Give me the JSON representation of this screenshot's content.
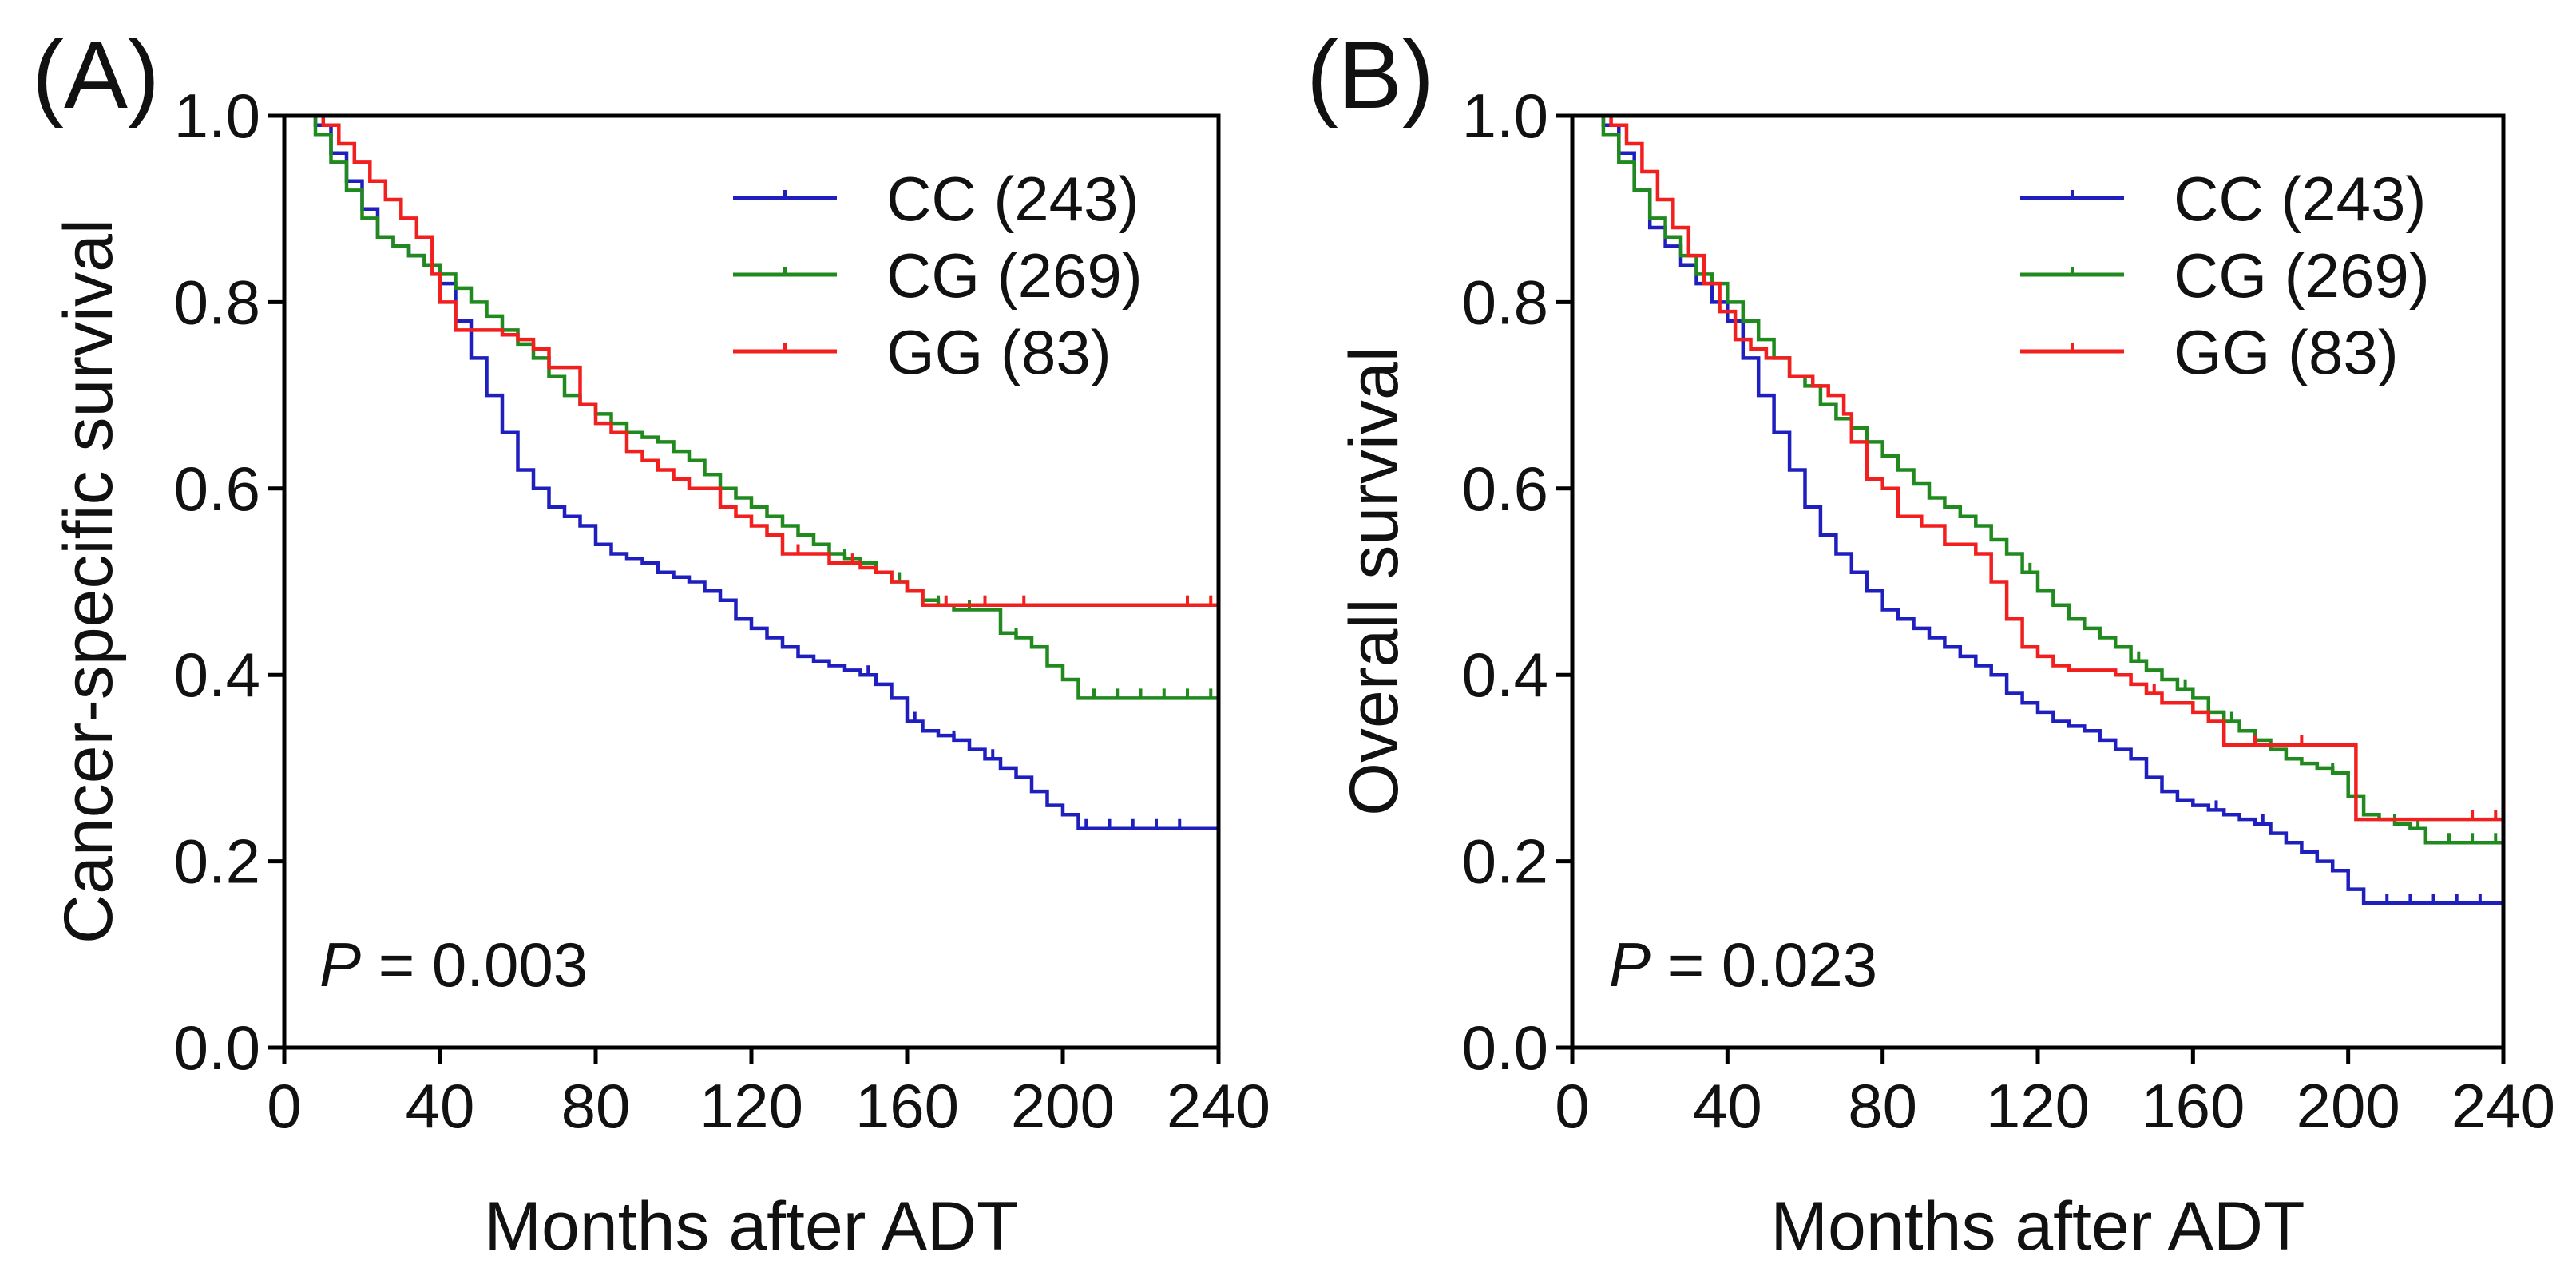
{
  "colors": {
    "CC": "#1f1fbf",
    "CG": "#218a1f",
    "GG": "#f21f1f",
    "axis": "#000000"
  },
  "chart_data": [
    {
      "type": "line",
      "panel_label": "(A)",
      "ylabel": "Cancer-specific survival",
      "xlabel": "Months after ADT",
      "xlim": [
        0,
        240
      ],
      "ylim": [
        0,
        1
      ],
      "xticks": [
        "0",
        "40",
        "80",
        "120",
        "160",
        "200",
        "240"
      ],
      "yticks": [
        "0.0",
        "0.2",
        "0.4",
        "0.6",
        "0.8",
        "1.0"
      ],
      "p_prefix": "P",
      "p_suffix": " = 0.003",
      "legend_position": "top-right",
      "series": [
        {
          "key": "CC",
          "name": "CC (243)",
          "x": [
            0,
            8,
            12,
            16,
            20,
            24,
            28,
            32,
            36,
            40,
            44,
            48,
            52,
            56,
            60,
            64,
            68,
            72,
            76,
            80,
            84,
            88,
            92,
            96,
            100,
            104,
            108,
            112,
            116,
            120,
            124,
            128,
            132,
            136,
            140,
            144,
            148,
            152,
            156,
            160,
            164,
            168,
            172,
            176,
            180,
            184,
            188,
            192,
            196,
            200,
            204,
            208,
            240
          ],
          "y": [
            1.0,
            0.99,
            0.96,
            0.93,
            0.9,
            0.87,
            0.86,
            0.85,
            0.84,
            0.82,
            0.78,
            0.74,
            0.7,
            0.66,
            0.62,
            0.6,
            0.58,
            0.57,
            0.56,
            0.54,
            0.53,
            0.525,
            0.52,
            0.51,
            0.505,
            0.5,
            0.49,
            0.48,
            0.46,
            0.45,
            0.44,
            0.43,
            0.42,
            0.415,
            0.41,
            0.405,
            0.4,
            0.39,
            0.375,
            0.35,
            0.34,
            0.335,
            0.33,
            0.32,
            0.31,
            0.3,
            0.29,
            0.275,
            0.26,
            0.25,
            0.235,
            0.235,
            0.235
          ],
          "censor_x": [
            150,
            162,
            172,
            182,
            206,
            212,
            218,
            224,
            230
          ]
        },
        {
          "key": "CG",
          "name": "CG (269)",
          "x": [
            0,
            8,
            12,
            16,
            20,
            24,
            28,
            32,
            36,
            40,
            44,
            48,
            52,
            56,
            60,
            64,
            68,
            72,
            76,
            80,
            84,
            88,
            92,
            96,
            100,
            104,
            108,
            112,
            116,
            120,
            124,
            128,
            132,
            136,
            140,
            144,
            148,
            152,
            156,
            160,
            164,
            168,
            172,
            176,
            180,
            184,
            188,
            192,
            196,
            200,
            204,
            240
          ],
          "y": [
            1.0,
            0.98,
            0.95,
            0.92,
            0.89,
            0.87,
            0.86,
            0.85,
            0.84,
            0.83,
            0.815,
            0.8,
            0.785,
            0.77,
            0.755,
            0.74,
            0.72,
            0.7,
            0.69,
            0.68,
            0.67,
            0.66,
            0.655,
            0.65,
            0.64,
            0.63,
            0.615,
            0.6,
            0.59,
            0.58,
            0.57,
            0.56,
            0.55,
            0.54,
            0.53,
            0.525,
            0.52,
            0.51,
            0.5,
            0.49,
            0.48,
            0.475,
            0.47,
            0.47,
            0.47,
            0.445,
            0.44,
            0.43,
            0.41,
            0.395,
            0.375,
            0.375
          ],
          "censor_x": [
            112,
            128,
            144,
            158,
            168,
            176,
            188,
            208,
            214,
            220,
            226,
            232,
            238
          ]
        },
        {
          "key": "GG",
          "name": "GG (83)",
          "x": [
            0,
            10,
            14,
            18,
            22,
            26,
            30,
            34,
            38,
            40,
            44,
            48,
            52,
            56,
            60,
            64,
            68,
            72,
            76,
            80,
            84,
            88,
            92,
            96,
            100,
            104,
            108,
            112,
            116,
            120,
            124,
            128,
            132,
            136,
            140,
            144,
            148,
            152,
            156,
            160,
            164,
            240
          ],
          "y": [
            1.0,
            0.99,
            0.97,
            0.95,
            0.93,
            0.91,
            0.89,
            0.87,
            0.83,
            0.8,
            0.77,
            0.77,
            0.77,
            0.765,
            0.76,
            0.75,
            0.73,
            0.73,
            0.69,
            0.67,
            0.66,
            0.64,
            0.63,
            0.62,
            0.61,
            0.6,
            0.6,
            0.58,
            0.57,
            0.56,
            0.55,
            0.53,
            0.53,
            0.53,
            0.52,
            0.52,
            0.515,
            0.51,
            0.5,
            0.49,
            0.475,
            0.475
          ],
          "censor_x": [
            132,
            140,
            146,
            160,
            170,
            180,
            190,
            232,
            238
          ]
        }
      ]
    },
    {
      "type": "line",
      "panel_label": "(B)",
      "ylabel": "Overall survival",
      "xlabel": "Months after ADT",
      "xlim": [
        0,
        240
      ],
      "ylim": [
        0,
        1
      ],
      "xticks": [
        "0",
        "40",
        "80",
        "120",
        "160",
        "200",
        "240"
      ],
      "yticks": [
        "0.0",
        "0.2",
        "0.4",
        "0.6",
        "0.8",
        "1.0"
      ],
      "p_prefix": "P",
      "p_suffix": " = 0.023",
      "legend_position": "top-right",
      "series": [
        {
          "key": "CC",
          "name": "CC (243)",
          "x": [
            0,
            8,
            12,
            16,
            20,
            24,
            28,
            32,
            36,
            40,
            44,
            48,
            52,
            56,
            60,
            64,
            68,
            72,
            76,
            80,
            84,
            88,
            92,
            96,
            100,
            104,
            108,
            112,
            116,
            120,
            124,
            128,
            132,
            136,
            140,
            144,
            148,
            152,
            156,
            160,
            164,
            168,
            172,
            176,
            180,
            184,
            188,
            192,
            196,
            200,
            204,
            208,
            240
          ],
          "y": [
            1.0,
            0.99,
            0.96,
            0.92,
            0.88,
            0.86,
            0.84,
            0.82,
            0.8,
            0.78,
            0.74,
            0.7,
            0.66,
            0.62,
            0.58,
            0.55,
            0.53,
            0.51,
            0.49,
            0.47,
            0.46,
            0.45,
            0.44,
            0.43,
            0.42,
            0.41,
            0.4,
            0.38,
            0.37,
            0.36,
            0.35,
            0.345,
            0.34,
            0.33,
            0.32,
            0.31,
            0.29,
            0.275,
            0.265,
            0.26,
            0.255,
            0.25,
            0.245,
            0.24,
            0.23,
            0.22,
            0.21,
            0.2,
            0.19,
            0.17,
            0.155,
            0.155,
            0.155
          ],
          "censor_x": [
            152,
            166,
            178,
            210,
            216,
            222,
            228,
            234
          ]
        },
        {
          "key": "CG",
          "name": "CG (269)",
          "x": [
            0,
            8,
            12,
            16,
            20,
            24,
            28,
            32,
            36,
            40,
            44,
            48,
            52,
            56,
            60,
            64,
            68,
            72,
            76,
            80,
            84,
            88,
            92,
            96,
            100,
            104,
            108,
            112,
            116,
            120,
            124,
            128,
            132,
            136,
            140,
            144,
            148,
            152,
            156,
            160,
            164,
            168,
            172,
            176,
            180,
            184,
            188,
            192,
            196,
            200,
            204,
            208,
            212,
            216,
            220,
            240
          ],
          "y": [
            1.0,
            0.98,
            0.95,
            0.92,
            0.89,
            0.87,
            0.85,
            0.83,
            0.82,
            0.8,
            0.78,
            0.76,
            0.74,
            0.72,
            0.71,
            0.69,
            0.675,
            0.665,
            0.65,
            0.635,
            0.62,
            0.605,
            0.59,
            0.58,
            0.57,
            0.56,
            0.545,
            0.53,
            0.51,
            0.49,
            0.475,
            0.46,
            0.45,
            0.44,
            0.43,
            0.415,
            0.405,
            0.395,
            0.385,
            0.375,
            0.36,
            0.35,
            0.34,
            0.33,
            0.32,
            0.31,
            0.305,
            0.3,
            0.295,
            0.27,
            0.25,
            0.245,
            0.24,
            0.235,
            0.22,
            0.22
          ],
          "censor_x": [
            104,
            118,
            132,
            146,
            158,
            170,
            184,
            196,
            212,
            218,
            226,
            232,
            238
          ]
        },
        {
          "key": "GG",
          "name": "GG (83)",
          "x": [
            0,
            10,
            14,
            18,
            22,
            26,
            30,
            34,
            38,
            42,
            46,
            50,
            56,
            62,
            66,
            70,
            72,
            76,
            80,
            84,
            90,
            96,
            100,
            104,
            108,
            112,
            116,
            120,
            124,
            128,
            136,
            140,
            144,
            148,
            152,
            160,
            164,
            168,
            176,
            184,
            200,
            202,
            240
          ],
          "y": [
            1.0,
            0.99,
            0.97,
            0.94,
            0.91,
            0.88,
            0.85,
            0.82,
            0.79,
            0.76,
            0.75,
            0.74,
            0.72,
            0.71,
            0.7,
            0.68,
            0.65,
            0.61,
            0.6,
            0.57,
            0.56,
            0.54,
            0.54,
            0.53,
            0.5,
            0.46,
            0.43,
            0.42,
            0.41,
            0.405,
            0.405,
            0.4,
            0.39,
            0.38,
            0.37,
            0.36,
            0.35,
            0.325,
            0.325,
            0.325,
            0.325,
            0.245,
            0.245
          ],
          "censor_x": [
            150,
            176,
            188,
            232,
            238
          ]
        }
      ]
    }
  ]
}
